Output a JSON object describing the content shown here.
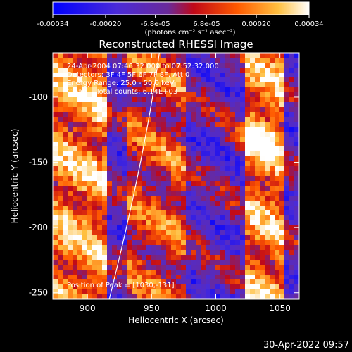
{
  "chart_data": {
    "type": "heatmap",
    "title": "Reconstructed RHESSI Image",
    "xlabel": "Heliocentric X (arcsec)",
    "ylabel": "Heliocentric Y (arcsec)",
    "xlim": [
      873,
      1065
    ],
    "ylim": [
      -255,
      -66
    ],
    "x_ticks": [
      900,
      950,
      1000,
      1050
    ],
    "y_ticks": [
      -100,
      -150,
      -200,
      -250
    ],
    "colorbar": {
      "range": [
        -0.00034,
        0.00034
      ],
      "tick_labels": [
        "-0.00034",
        "-0.00020",
        "-6.8e-05",
        "6.8e-05",
        "0.00020",
        "0.00034"
      ],
      "tick_values": [
        -0.00034,
        -0.0002,
        -6.8e-05,
        6.8e-05,
        0.0002,
        0.00034
      ],
      "unit_label": "(photons cm⁻² s⁻¹ asec⁻²)",
      "colors": [
        "#0000ff",
        "#7a3fc4",
        "#d01010",
        "#ff7a00",
        "#ffe060",
        "#ffffff"
      ]
    },
    "annotations": [
      "24-Apr-2004 07:46:32.000 to 07:52:32.000",
      "Detectors: 3F 4F 5F 6F 7F 8F, Att 0",
      "Energy Range: 25.0 - 50.0 keV",
      "Clean    Total counts: 6.14E+03"
    ],
    "peak_label": "Position of Peak = [1030,-131]",
    "peak_position": [
      1030,
      -131
    ],
    "limb_curve_x_at_y": [
      [
        956,
        -66
      ],
      [
        945,
        -150
      ],
      [
        917,
        -255
      ]
    ],
    "intensity_columns": [
      {
        "x_range": [
          873,
          915
        ],
        "level": "high",
        "note": "left bright column, strong at top-left and bottom-left"
      },
      {
        "x_range": [
          915,
          930
        ],
        "level": "low"
      },
      {
        "x_range": [
          930,
          975
        ],
        "level": "medium",
        "note": "central bright column around x≈950"
      },
      {
        "x_range": [
          975,
          1020
        ],
        "level": "low",
        "note": "blue/purple band"
      },
      {
        "x_range": [
          1020,
          1050
        ],
        "level": "high",
        "note": "right bright column, peak at (1030,-131)"
      },
      {
        "x_range": [
          1050,
          1065
        ],
        "level": "low"
      }
    ]
  },
  "footer_timestamp": "30-Apr-2022 09:57"
}
